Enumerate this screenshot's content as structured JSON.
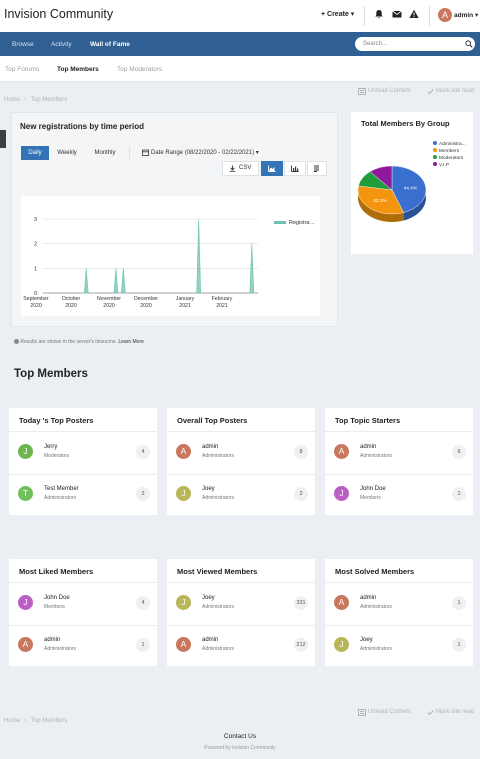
{
  "header": {
    "site_title": "Invision Community",
    "create_label": "+ Create ▾",
    "user_initial": "A",
    "user_label": "admin ▾",
    "icons": [
      "bell-icon",
      "mail-icon",
      "warning-icon"
    ]
  },
  "nav": {
    "items": [
      "Browse",
      "Activity",
      "Wall of Fame"
    ],
    "active": "Wall of Fame",
    "search_placeholder": "Search..."
  },
  "subnav": {
    "items": [
      "Top Forums",
      "Top Members",
      "Top Moderators"
    ],
    "active": "Top Members"
  },
  "breadcrumb": {
    "home": "Home",
    "sep": "›",
    "current": "Top Members",
    "unread": "Unread Content",
    "mark_read": "Mark site read"
  },
  "registrations": {
    "title": "New registrations by time period",
    "tabs": [
      "Daily",
      "Weekly",
      "Monthly"
    ],
    "active_tab": "Daily",
    "date_range": "Date Range (08/22/2020 - 02/22/2021) ▾",
    "csv_label": "CSV",
    "timezone_note": "Results are shown in the server's timezone.",
    "learn_more": "Learn More"
  },
  "chart_data": [
    {
      "type": "area",
      "title": "",
      "x_ticks": [
        {
          "month": "September",
          "year": "2020"
        },
        {
          "month": "October",
          "year": "2020"
        },
        {
          "month": "November",
          "year": "2020"
        },
        {
          "month": "December",
          "year": "2020"
        },
        {
          "month": "January",
          "year": "2021"
        },
        {
          "month": "February",
          "year": "2021"
        }
      ],
      "ylim": [
        0,
        3
      ],
      "y_ticks": [
        0,
        1,
        2,
        3
      ],
      "grid": true,
      "legend": "top-right",
      "series": [
        {
          "name": "Registrations",
          "color": "#6fc2b0",
          "points": [
            {
              "date": "2020-10-06",
              "value": 1
            },
            {
              "date": "2020-10-30",
              "value": 1
            },
            {
              "date": "2020-11-05",
              "value": 1
            },
            {
              "date": "2021-01-05",
              "value": 3
            },
            {
              "date": "2021-02-17",
              "value": 2
            }
          ]
        }
      ]
    },
    {
      "type": "pie",
      "title": "Total Members By Group",
      "legend": "top-right",
      "slices": [
        {
          "label": "Administra...",
          "value": 44.4,
          "color": "#3a6fd0",
          "text": "44.4%"
        },
        {
          "label": "Members",
          "value": 33.3,
          "color": "#f4960d",
          "text": "33.3%"
        },
        {
          "label": "Moderators",
          "value": 11.1,
          "color": "#1f9d3b",
          "text": ""
        },
        {
          "label": "V.I.P.",
          "value": 11.1,
          "color": "#8e1a9b",
          "text": ""
        }
      ]
    }
  ],
  "top_members_title": "Top Members",
  "cards": [
    {
      "title": "Today 's Top Posters",
      "rows": [
        {
          "initial": "J",
          "name": "Jerry",
          "group": "Moderators",
          "count": "4",
          "color": "#6db64d"
        },
        {
          "initial": "T",
          "name": "Test Member",
          "group": "Administrators",
          "count": "2",
          "color": "#6fc05a"
        }
      ]
    },
    {
      "title": "Overall Top Posters",
      "rows": [
        {
          "initial": "A",
          "name": "admin",
          "group": "Administrators",
          "count": "8",
          "color": "#c9775e"
        },
        {
          "initial": "J",
          "name": "Joey",
          "group": "Administrators",
          "count": "2",
          "color": "#b9b65a"
        }
      ]
    },
    {
      "title": "Top Topic Starters",
      "rows": [
        {
          "initial": "A",
          "name": "admin",
          "group": "Administrators",
          "count": "6",
          "color": "#c9775e"
        },
        {
          "initial": "J",
          "name": "John Doe",
          "group": "Members",
          "count": "1",
          "color": "#bb5fc4"
        }
      ]
    },
    {
      "title": "Most Liked Members",
      "rows": [
        {
          "initial": "J",
          "name": "John Doe",
          "group": "Members",
          "count": "4",
          "color": "#bb5fc4"
        },
        {
          "initial": "A",
          "name": "admin",
          "group": "Administrators",
          "count": "1",
          "color": "#c9775e"
        }
      ]
    },
    {
      "title": "Most Viewed Members",
      "rows": [
        {
          "initial": "J",
          "name": "Joey",
          "group": "Administrators",
          "count": "331",
          "color": "#b9b65a"
        },
        {
          "initial": "A",
          "name": "admin",
          "group": "Administrators",
          "count": "212",
          "color": "#c9775e"
        }
      ]
    },
    {
      "title": "Most Solved Members",
      "rows": [
        {
          "initial": "A",
          "name": "admin",
          "group": "Administrators",
          "count": "1",
          "color": "#c9775e"
        },
        {
          "initial": "J",
          "name": "Joey",
          "group": "Administrators",
          "count": "1",
          "color": "#b9b65a"
        }
      ]
    }
  ],
  "footer": {
    "contact": "Contact Us",
    "powered": "Powered by Invision Community"
  }
}
